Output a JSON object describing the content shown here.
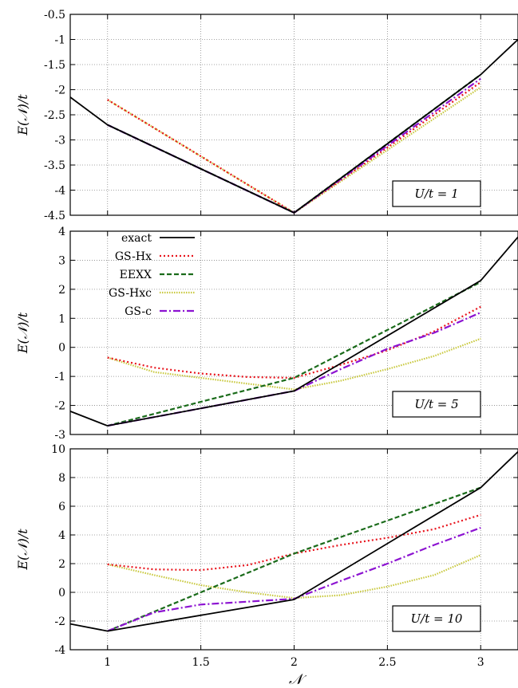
{
  "chart_data": [
    {
      "type": "line",
      "ylabel": "E(𝒩)/t",
      "xlabel": "",
      "annotation": "U/t = 1",
      "xlim": [
        0.8,
        3.2
      ],
      "ylim": [
        -4.5,
        -0.5
      ],
      "yticks": [
        -0.5,
        -1,
        -1.5,
        -2,
        -2.5,
        -3,
        -3.5,
        -4,
        -4.5
      ],
      "yticklabels": [
        "-0.5",
        "-1",
        "-1.5",
        "-2",
        "-2.5",
        "-3",
        "-3.5",
        "-4",
        "-4.5"
      ],
      "grid": true,
      "series": [
        {
          "name": "exact",
          "points": [
            [
              0.8,
              -2.15
            ],
            [
              1,
              -2.7
            ],
            [
              2,
              -4.45
            ],
            [
              3,
              -1.7
            ],
            [
              3.2,
              -1.0
            ]
          ]
        },
        {
          "name": "GS-Hx",
          "points": [
            [
              1,
              -2.2
            ],
            [
              2,
              -4.45
            ],
            [
              3,
              -1.85
            ]
          ]
        },
        {
          "name": "EEXX",
          "points": [
            [
              1,
              -2.7
            ],
            [
              2,
              -4.45
            ],
            [
              3,
              -1.7
            ]
          ]
        },
        {
          "name": "GS-Hxc",
          "points": [
            [
              1,
              -2.2
            ],
            [
              2,
              -4.45
            ],
            [
              3,
              -1.95
            ]
          ]
        },
        {
          "name": "GS-c",
          "points": [
            [
              1,
              -2.7
            ],
            [
              2,
              -4.45
            ],
            [
              3,
              -1.78
            ]
          ]
        }
      ]
    },
    {
      "type": "line",
      "ylabel": "E(𝒩)/t",
      "xlabel": "",
      "annotation": "U/t = 5",
      "xlim": [
        0.8,
        3.2
      ],
      "ylim": [
        -3,
        4
      ],
      "yticks": [
        4,
        3,
        2,
        1,
        0,
        -1,
        -2,
        -3
      ],
      "yticklabels": [
        "4",
        "3",
        "2",
        "1",
        "0",
        "-1",
        "-2",
        "-3"
      ],
      "grid": true,
      "legend": {
        "position": "top-left",
        "entries": [
          "exact",
          "GS-Hx",
          "EEXX",
          "GS-Hxc",
          "GS-c"
        ]
      },
      "series": [
        {
          "name": "exact",
          "points": [
            [
              0.8,
              -2.2
            ],
            [
              1,
              -2.7
            ],
            [
              2,
              -1.5
            ],
            [
              3,
              2.3
            ],
            [
              3.2,
              3.8
            ]
          ]
        },
        {
          "name": "GS-Hx",
          "points": [
            [
              1,
              -0.35
            ],
            [
              1.25,
              -0.7
            ],
            [
              1.5,
              -0.9
            ],
            [
              1.75,
              -1.02
            ],
            [
              2,
              -1.05
            ],
            [
              2.25,
              -0.6
            ],
            [
              2.5,
              -0.1
            ],
            [
              2.75,
              0.55
            ],
            [
              3,
              1.4
            ]
          ]
        },
        {
          "name": "EEXX",
          "points": [
            [
              1,
              -2.7
            ],
            [
              2,
              -1.05
            ],
            [
              3,
              2.25
            ]
          ]
        },
        {
          "name": "GS-Hxc",
          "points": [
            [
              1,
              -0.35
            ],
            [
              1.25,
              -0.85
            ],
            [
              1.5,
              -1.05
            ],
            [
              1.75,
              -1.25
            ],
            [
              2,
              -1.45
            ],
            [
              2.25,
              -1.15
            ],
            [
              2.5,
              -0.75
            ],
            [
              2.75,
              -0.3
            ],
            [
              3,
              0.3
            ]
          ]
        },
        {
          "name": "GS-c",
          "points": [
            [
              1,
              -2.7
            ],
            [
              2,
              -1.5
            ],
            [
              2.25,
              -0.75
            ],
            [
              2.5,
              -0.05
            ],
            [
              2.75,
              0.5
            ],
            [
              3,
              1.2
            ]
          ]
        }
      ]
    },
    {
      "type": "line",
      "ylabel": "E(𝒩)/t",
      "xlabel": "𝒩",
      "annotation": "U/t = 10",
      "xlim": [
        0.8,
        3.2
      ],
      "ylim": [
        -4,
        10
      ],
      "yticks": [
        10,
        8,
        6,
        4,
        2,
        0,
        -2,
        -4
      ],
      "yticklabels": [
        "10",
        "8",
        "6",
        "4",
        "2",
        "0",
        "-2",
        "-4"
      ],
      "xticks": [
        1,
        1.5,
        2,
        2.5,
        3
      ],
      "xticklabels": [
        "1",
        "1.5",
        "2",
        "2.5",
        "3"
      ],
      "grid": true,
      "series": [
        {
          "name": "exact",
          "points": [
            [
              0.8,
              -2.2
            ],
            [
              1,
              -2.7
            ],
            [
              2,
              -0.5
            ],
            [
              3,
              7.3
            ],
            [
              3.2,
              9.8
            ]
          ]
        },
        {
          "name": "GS-Hx",
          "points": [
            [
              1,
              1.95
            ],
            [
              1.25,
              1.6
            ],
            [
              1.5,
              1.55
            ],
            [
              1.75,
              1.9
            ],
            [
              2,
              2.7
            ],
            [
              2.25,
              3.3
            ],
            [
              2.5,
              3.8
            ],
            [
              2.75,
              4.4
            ],
            [
              3,
              5.4
            ]
          ]
        },
        {
          "name": "EEXX",
          "points": [
            [
              1,
              -2.7
            ],
            [
              2,
              2.7
            ],
            [
              3,
              7.3
            ]
          ]
        },
        {
          "name": "GS-Hxc",
          "points": [
            [
              1,
              1.95
            ],
            [
              1.25,
              1.2
            ],
            [
              1.5,
              0.5
            ],
            [
              1.75,
              0.0
            ],
            [
              2,
              -0.4
            ],
            [
              2.25,
              -0.2
            ],
            [
              2.5,
              0.4
            ],
            [
              2.75,
              1.2
            ],
            [
              3,
              2.6
            ]
          ]
        },
        {
          "name": "GS-c",
          "points": [
            [
              1,
              -2.7
            ],
            [
              1.25,
              -1.4
            ],
            [
              1.5,
              -0.85
            ],
            [
              1.75,
              -0.65
            ],
            [
              2,
              -0.45
            ],
            [
              2.25,
              0.8
            ],
            [
              2.5,
              2.0
            ],
            [
              2.75,
              3.3
            ],
            [
              3,
              4.5
            ]
          ]
        }
      ]
    }
  ],
  "style": {
    "colors": {
      "exact": "#000000",
      "GS-Hx": "#e8141d",
      "EEXX": "#1a6b1a",
      "GS-Hxc": "#c8c83c",
      "GS-c": "#8c13d1"
    },
    "dashes": {
      "exact": "",
      "GS-Hx": "2,3",
      "EEXX": "6,3",
      "GS-Hxc": "1.5,1.5",
      "GS-c": "9,3,2,3"
    }
  }
}
